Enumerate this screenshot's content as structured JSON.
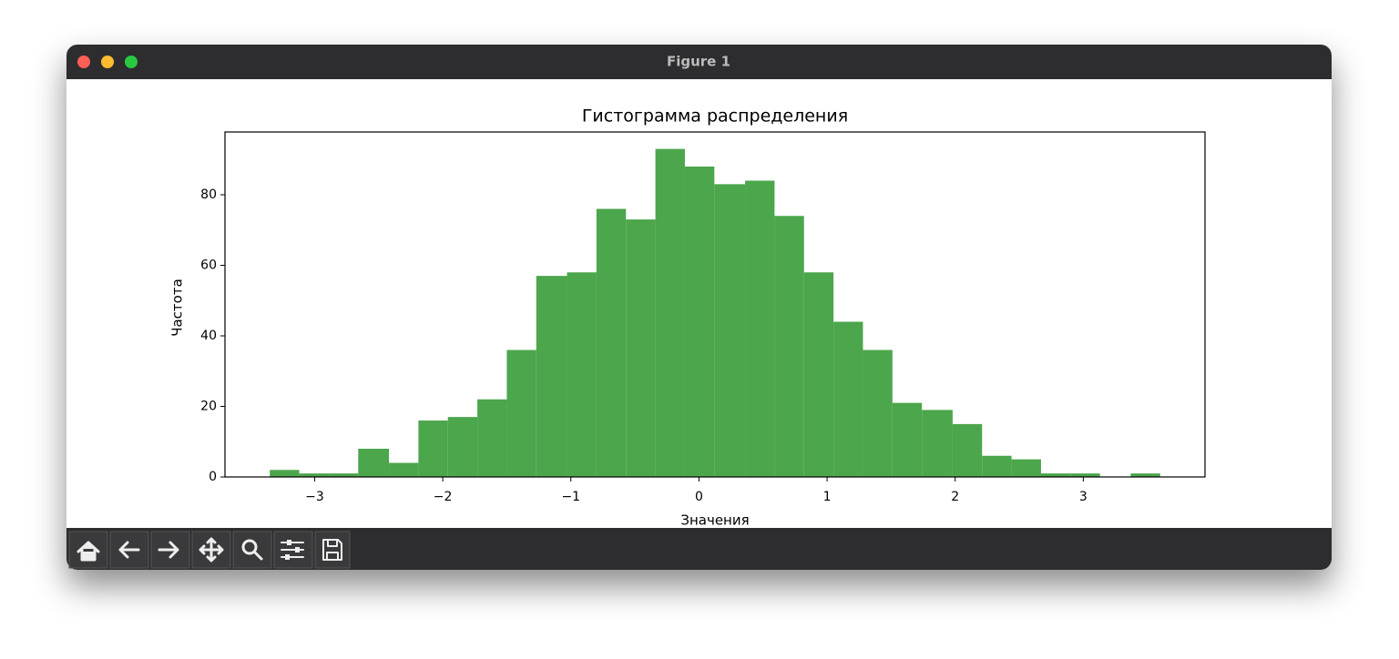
{
  "window_title": "Figure 1",
  "chart_data": {
    "type": "histogram",
    "title": "Гистограмма распределения",
    "x_label": "Значения",
    "y_label": "Частота",
    "bins": [
      -3.35,
      -3.12,
      -2.89,
      -2.66,
      -2.42,
      -2.19,
      -1.96,
      -1.73,
      -1.5,
      -1.27,
      -1.03,
      -0.8,
      -0.57,
      -0.34,
      -0.11,
      0.12,
      0.36,
      0.59,
      0.82,
      1.05,
      1.28,
      1.51,
      1.74,
      1.98,
      2.21,
      2.44,
      2.67,
      2.9,
      3.13,
      3.37,
      3.6
    ],
    "values": [
      2,
      1,
      1,
      8,
      4,
      16,
      17,
      22,
      36,
      57,
      58,
      76,
      73,
      93,
      88,
      83,
      84,
      74,
      58,
      44,
      36,
      21,
      19,
      15,
      6,
      5,
      1,
      1,
      0,
      1
    ],
    "color": "#4ca64c",
    "xlim": [
      -3.7,
      3.95
    ],
    "xticks": [
      {
        "value": -3,
        "label": "−3"
      },
      {
        "value": -2,
        "label": "−2"
      },
      {
        "value": -1,
        "label": "−1"
      },
      0,
      1,
      2,
      3
    ],
    "ylim": [
      0,
      97.8
    ],
    "yticks": [
      0,
      20,
      40,
      60,
      80
    ],
    "grid": false
  }
}
